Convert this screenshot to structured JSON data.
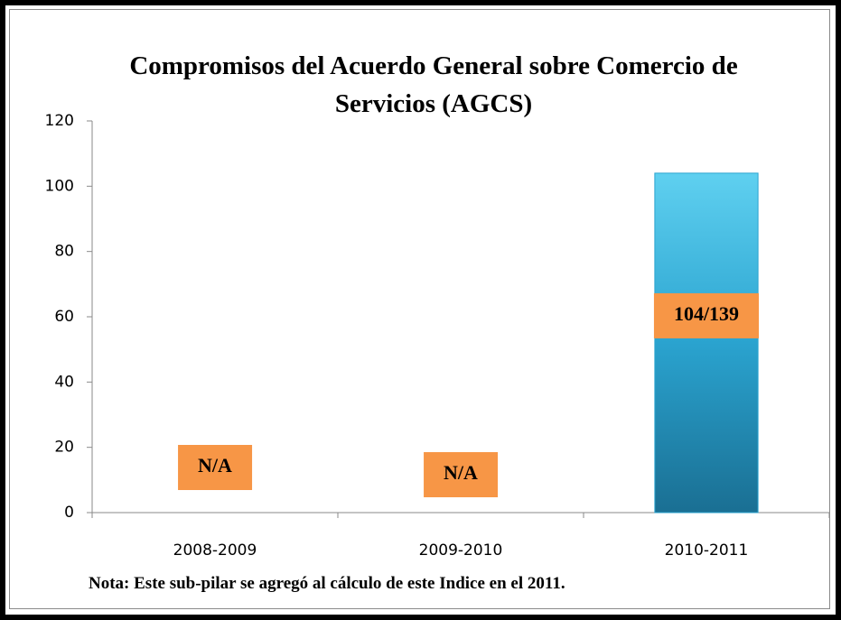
{
  "chart_data": {
    "type": "bar",
    "title": "Compromisos del Acuerdo General sobre Comercio de Servicios (AGCS)",
    "categories": [
      "2008-2009",
      "2009-2010",
      "2010-2011"
    ],
    "values": [
      null,
      null,
      104
    ],
    "value_labels": [
      "N/A",
      "N/A",
      "104/139"
    ],
    "color": "#2aa3cf",
    "ylim": [
      0,
      120
    ],
    "yticks": [
      0,
      20,
      40,
      60,
      80,
      100,
      120
    ],
    "grid": false,
    "note": "Nota: Este sub-pilar se agregó al cálculo de este Indice en el 2011."
  }
}
